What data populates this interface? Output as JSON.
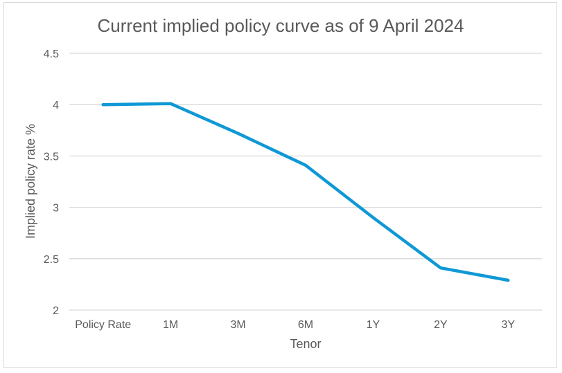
{
  "chart_data": {
    "type": "line",
    "title": "Current implied policy curve as of  9 April 2024",
    "xlabel": "Tenor",
    "ylabel": "Implied policy rate  %",
    "categories": [
      "Policy Rate",
      "1M",
      "3M",
      "6M",
      "1Y",
      "2Y",
      "3Y"
    ],
    "series": [
      {
        "values": [
          4.0,
          4.01,
          3.72,
          3.41,
          2.9,
          2.41,
          2.29
        ],
        "color": "#0f98d6"
      }
    ],
    "ylim": [
      2,
      4.5
    ],
    "yticks": [
      "2",
      "2.5",
      "3",
      "3.5",
      "4",
      "4.5"
    ],
    "grid": true,
    "legend": "none"
  }
}
